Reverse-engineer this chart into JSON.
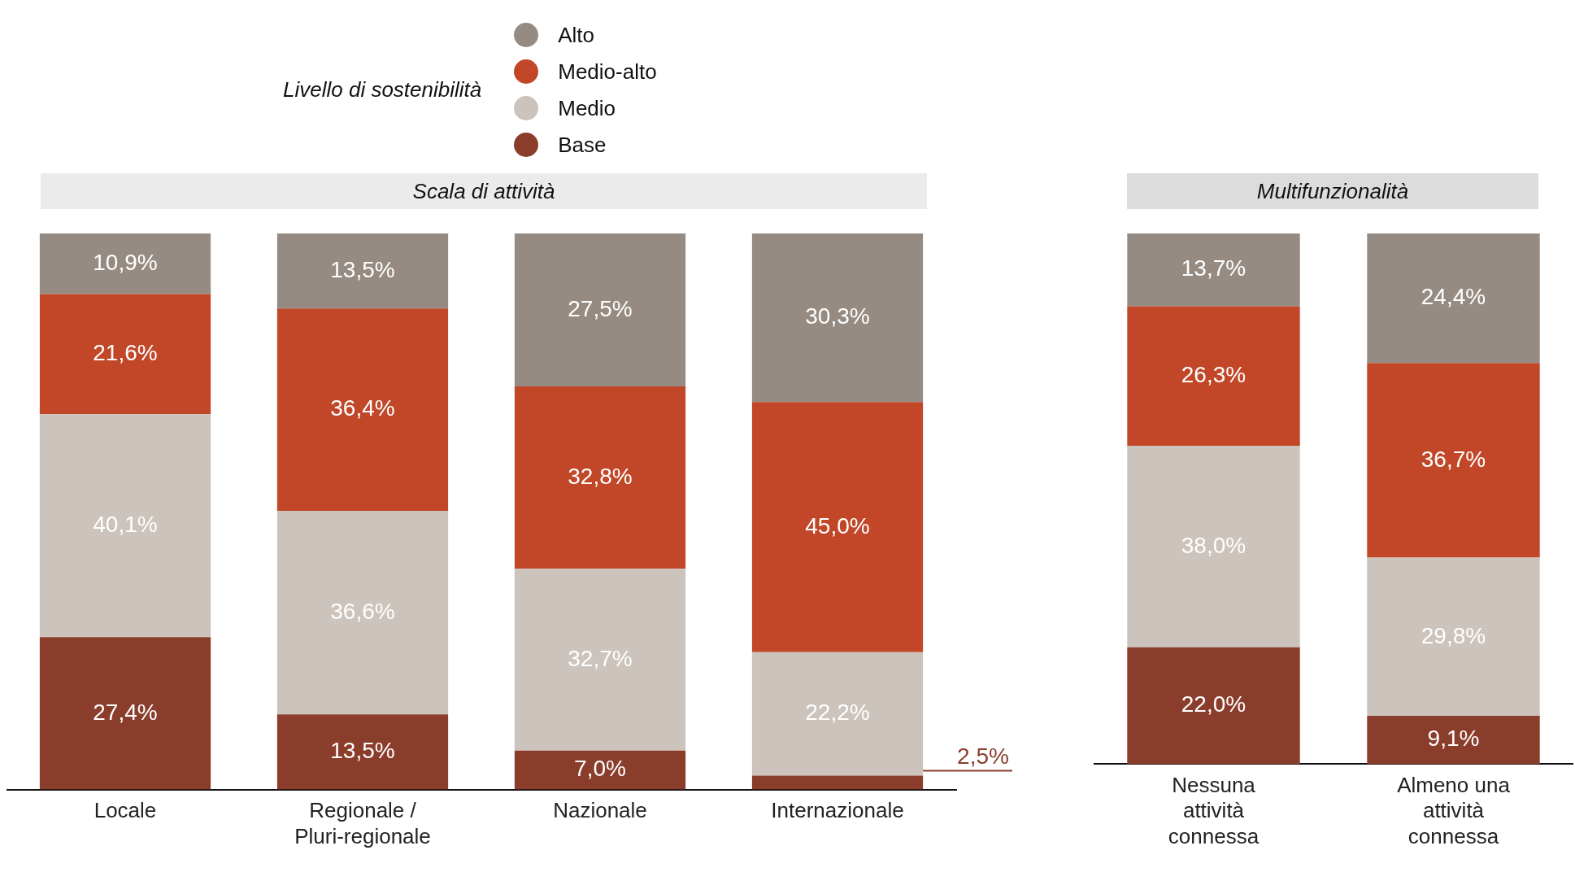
{
  "chart_data": [
    {
      "type": "bar",
      "title": "Scala di attività",
      "legend_title": "Livello di sostenibilità",
      "legend": "top",
      "stacked": true,
      "grid": false,
      "tick_labels": "x",
      "ylim": [
        0,
        100
      ],
      "categories": [
        "Locale",
        "Regionale / Pluri-regionale",
        "Nazionale",
        "Internazionale"
      ],
      "series": [
        {
          "name": "Base",
          "color": "#8b3d2c",
          "values": [
            27.4,
            13.5,
            7.0,
            2.5
          ],
          "value_labels": [
            "27,4%",
            "13,5%",
            "7,0%",
            "2,5%"
          ]
        },
        {
          "name": "Medio",
          "color": "#cbc3bc",
          "values": [
            40.1,
            36.6,
            32.7,
            22.2
          ],
          "value_labels": [
            "40,1%",
            "36,6%",
            "32,7%",
            "22,2%"
          ]
        },
        {
          "name": "Medio-alto",
          "color": "#c14728",
          "values": [
            21.6,
            36.4,
            32.8,
            45.0
          ],
          "value_labels": [
            "21,6%",
            "36,4%",
            "32,8%",
            "45,0%"
          ]
        },
        {
          "name": "Alto",
          "color": "#968b82",
          "values": [
            10.9,
            13.5,
            27.5,
            30.3
          ],
          "value_labels": [
            "10,9%",
            "13,5%",
            "27,5%",
            "30,3%"
          ]
        }
      ]
    },
    {
      "type": "bar",
      "title": "Multifunzionalità",
      "stacked": true,
      "grid": false,
      "tick_labels": "x",
      "ylim": [
        0,
        100
      ],
      "categories": [
        "Nessuna attività connessa",
        "Almeno una attività connessa"
      ],
      "series": [
        {
          "color": "#8b3d2c",
          "values": [
            22.0,
            9.1
          ],
          "value_labels": [
            "22,0%",
            "9,1%"
          ]
        },
        {
          "color": "#cbc3bc",
          "values": [
            38.0,
            29.8
          ],
          "value_labels": [
            "38,0%",
            "29,8%"
          ]
        },
        {
          "color": "#c14728",
          "values": [
            26.3,
            36.7
          ],
          "value_labels": [
            "26,3%",
            "36,7%"
          ]
        },
        {
          "color": "#968b82",
          "values": [
            13.7,
            24.4
          ],
          "value_labels": [
            "13,7%",
            "24,4%"
          ]
        }
      ]
    }
  ]
}
